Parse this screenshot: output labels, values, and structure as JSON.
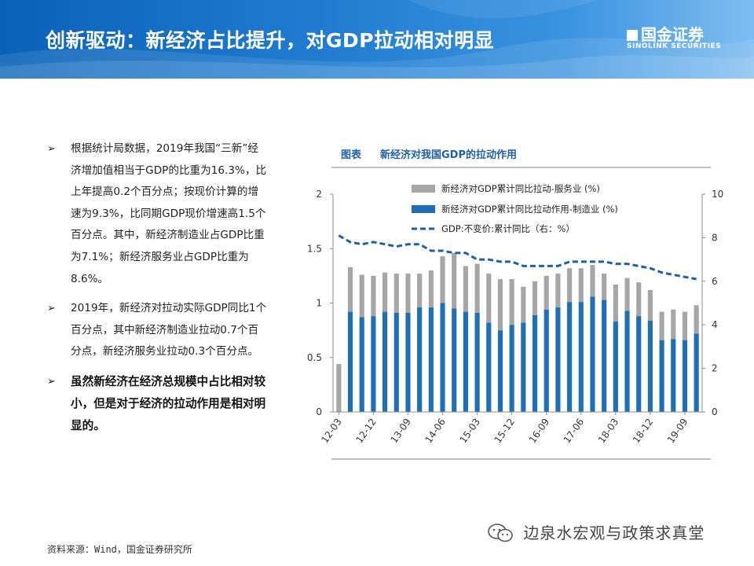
{
  "header": {
    "title": "创新驱动：新经济占比提升，对GDP拉动相对明显",
    "logo_cn": "国金证券",
    "logo_en": "SINOLINK SECURITIES"
  },
  "bullets": [
    {
      "marker": "➢",
      "text": "根据统计局数据，2019年我国“三新”经济增加值相当于GDP的比重为16.3%，比上年提高0.2个百分点；按现价计算的增速为9.3%，比同期GDP现价增速高1.5个百分点。其中，新经济制造业占GDP比重为7.1%；新经济服务业占GDP比重为8.6%。"
    },
    {
      "marker": "➢",
      "text": "2019年，新经济对拉动实际GDP同比1个百分点，其中新经济制造业拉动0.7个百分点，新经济服务业拉动0.3个百分点。"
    },
    {
      "marker": "➢",
      "text": "虽然新经济在经济总规模中占比相对较小，但是对于经济的拉动作用是相对明显的。"
    }
  ],
  "source": "资料来源：Wind，国金证券研究所",
  "watermark": "边泉水宏观与政策求真堂",
  "colors": {
    "service": "#a6a6a6",
    "manufacturing": "#1f6fb8",
    "gdp": "#1f5ea8",
    "banner": "#0a62b8"
  },
  "chart_data": {
    "type": "bar",
    "figure_label": "图表",
    "title": "新经济对我国GDP的拉动作用",
    "categories": [
      "12-03",
      "12-06",
      "12-09",
      "12-12",
      "13-03",
      "13-06",
      "13-09",
      "13-12",
      "14-03",
      "14-06",
      "14-09",
      "14-12",
      "15-03",
      "15-06",
      "15-09",
      "15-12",
      "16-03",
      "16-06",
      "16-09",
      "16-12",
      "17-03",
      "17-06",
      "17-09",
      "17-12",
      "18-03",
      "18-06",
      "18-09",
      "18-12",
      "19-03",
      "19-06",
      "19-09",
      "19-12"
    ],
    "x_ticks": [
      "12-03",
      "12-12",
      "13-09",
      "14-06",
      "15-03",
      "15-12",
      "16-09",
      "17-06",
      "18-03",
      "18-12",
      "19-09"
    ],
    "stacked": true,
    "series": [
      {
        "name": "新经济对GDP累计同比拉动作用-制造业 (%)",
        "axis": "left",
        "kind": "bar",
        "values": [
          0,
          0.92,
          0.87,
          0.88,
          0.92,
          0.91,
          0.91,
          0.96,
          0.96,
          1.0,
          0.95,
          0.92,
          0.91,
          0.82,
          0.75,
          0.8,
          0.82,
          0.89,
          0.94,
          0.96,
          1.01,
          1.01,
          1.06,
          1.03,
          0.83,
          0.93,
          0.88,
          0.84,
          0.66,
          0.67,
          0.66,
          0.72
        ]
      },
      {
        "name": "新经济对GDP累计同比拉动-服务业 (%)",
        "axis": "left",
        "kind": "bar",
        "values": [
          0.44,
          0.41,
          0.39,
          0.37,
          0.36,
          0.36,
          0.36,
          0.31,
          0.34,
          0.43,
          0.51,
          0.42,
          0.45,
          0.45,
          0.47,
          0.42,
          0.33,
          0.31,
          0.31,
          0.31,
          0.31,
          0.31,
          0.29,
          0.24,
          0.34,
          0.3,
          0.31,
          0.28,
          0.26,
          0.27,
          0.26,
          0.26
        ]
      },
      {
        "name": "GDP:不变价:累计同比（右：%）",
        "axis": "right",
        "kind": "line",
        "dash": true,
        "values": [
          8.1,
          7.8,
          7.7,
          7.8,
          7.7,
          7.6,
          7.7,
          7.7,
          7.4,
          7.4,
          7.3,
          7.3,
          7.0,
          7.0,
          6.9,
          6.9,
          6.7,
          6.7,
          6.7,
          6.7,
          6.9,
          6.9,
          6.9,
          6.9,
          6.8,
          6.8,
          6.7,
          6.6,
          6.4,
          6.3,
          6.2,
          6.1
        ]
      }
    ],
    "legend": [
      "新经济对GDP累计同比拉动-服务业 (%)",
      "新经济对GDP累计同比拉动作用-制造业 (%)",
      "GDP:不变价:累计同比（右：%）"
    ],
    "legend_position": "top-right",
    "y_left": {
      "min": 0,
      "max": 2,
      "ticks": [
        "0",
        "0.5",
        "1",
        "1.5",
        "2"
      ]
    },
    "y_right": {
      "min": 0,
      "max": 10,
      "ticks": [
        "0",
        "2",
        "4",
        "6",
        "8",
        "10"
      ]
    },
    "grid": false
  }
}
